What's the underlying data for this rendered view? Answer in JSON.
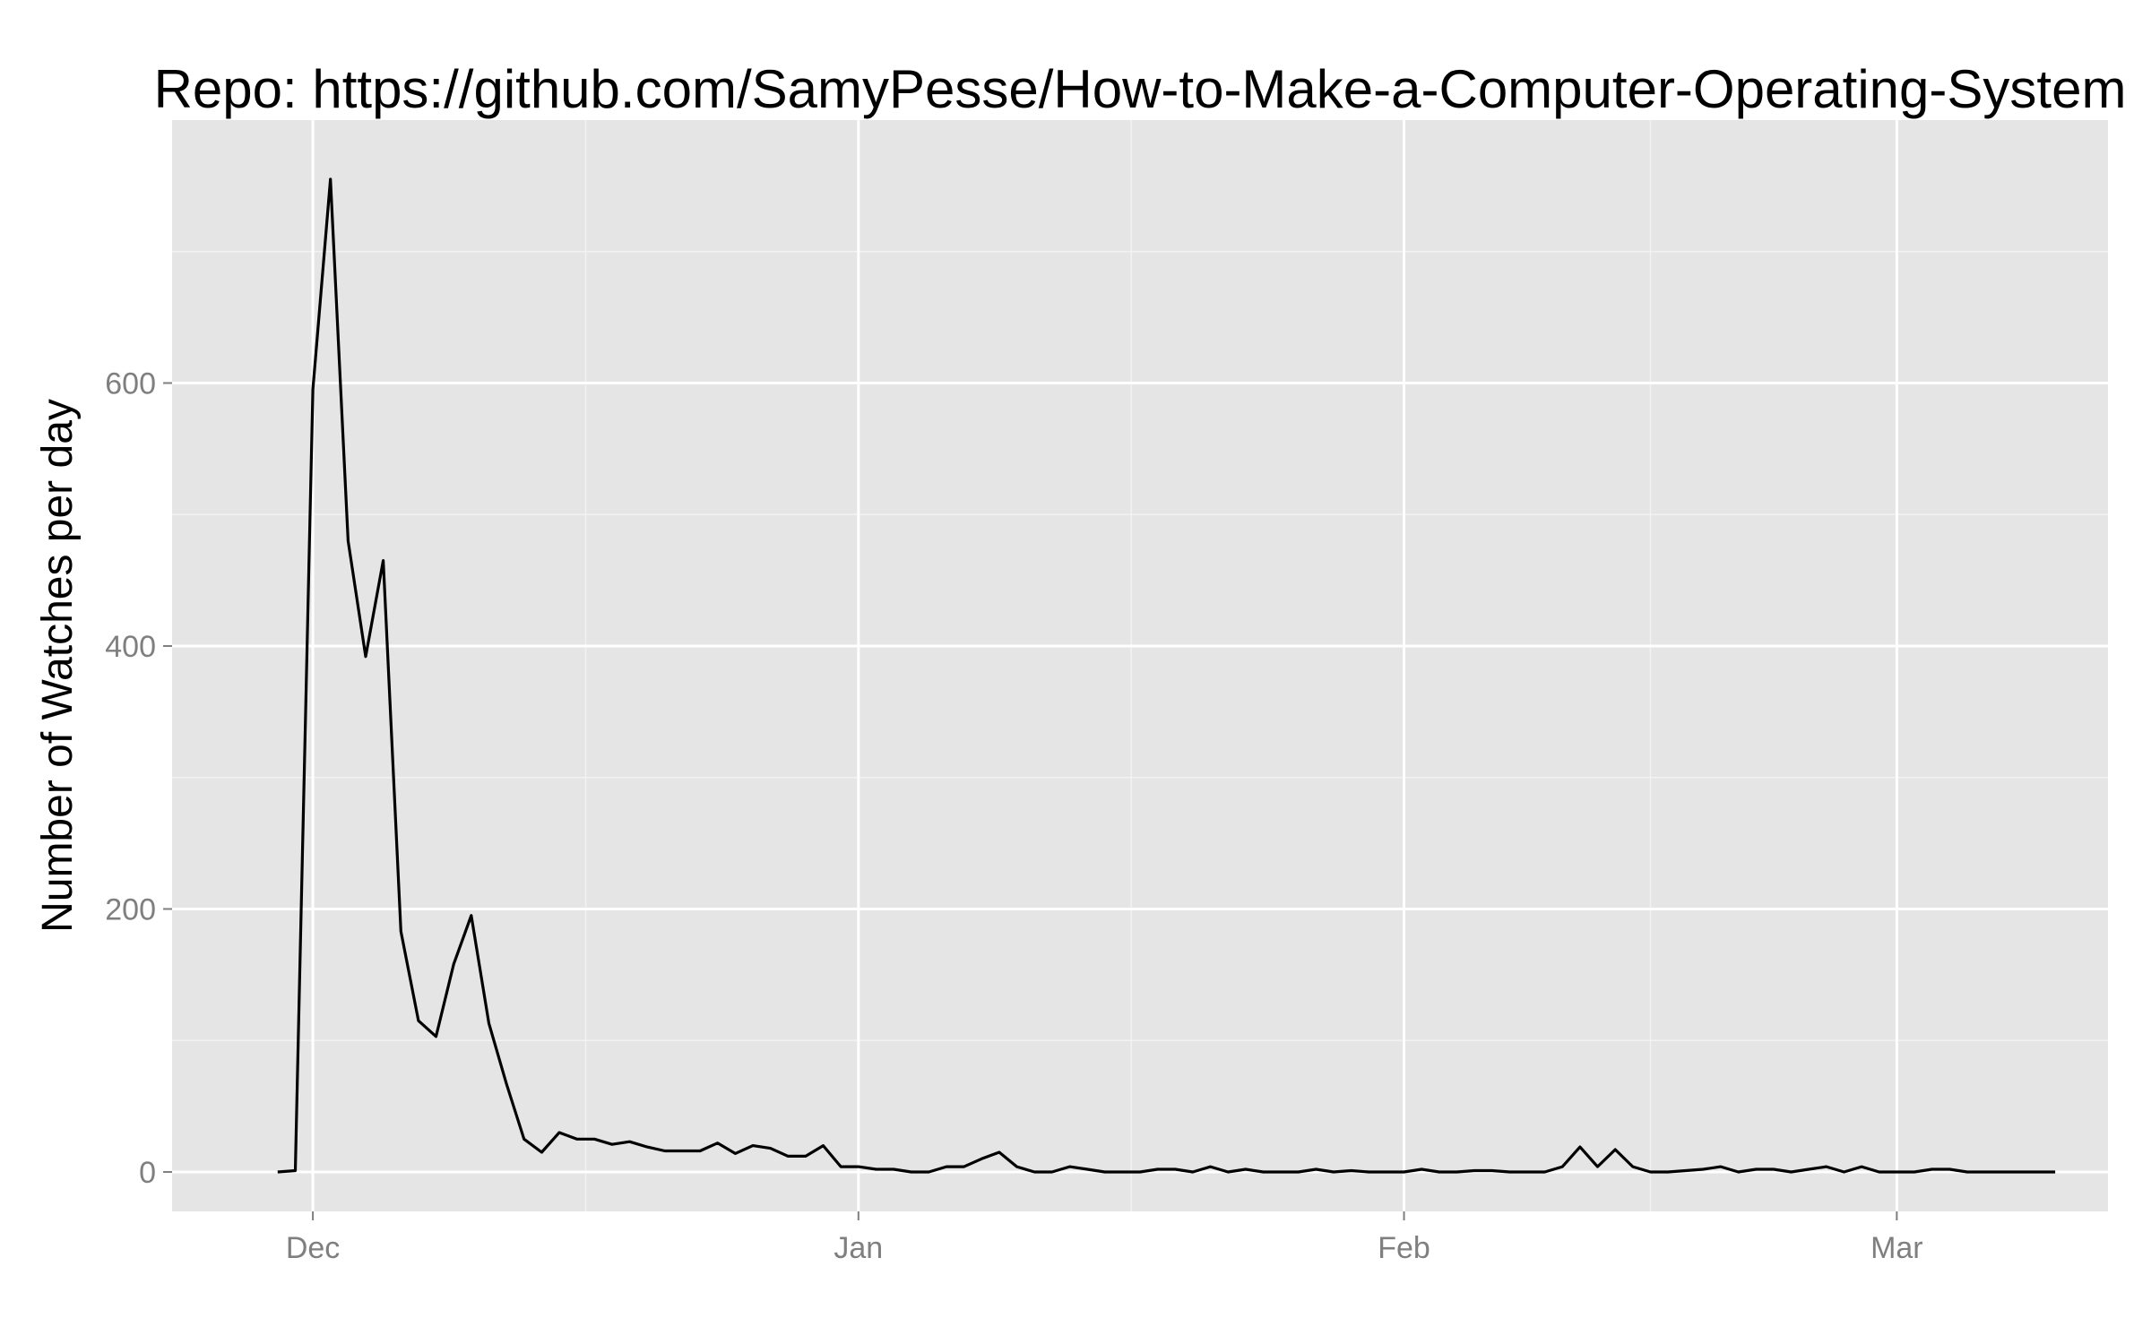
{
  "chart_data": {
    "type": "line",
    "title": "Repo: https://github.com/SamyPesse/How-to-Make-a-Computer-Operating-System",
    "xlabel": "",
    "ylabel": "Number of Watches per day",
    "x_axis": {
      "type": "date",
      "range": [
        "2013-11-23",
        "2014-03-13"
      ],
      "ticks": [
        "2013-12-01",
        "2014-01-01",
        "2014-02-01",
        "2014-03-01"
      ],
      "tick_labels": [
        "Dec",
        "Jan",
        "Feb",
        "Mar"
      ]
    },
    "y_axis": {
      "range": [
        -30,
        800
      ],
      "ticks": [
        0,
        200,
        400,
        600
      ],
      "tick_labels": [
        "0",
        "200",
        "400",
        "600"
      ]
    },
    "grid": true,
    "background": "#e5e5e5",
    "line_color": "#000000",
    "x": [
      "2013-11-29",
      "2013-11-30",
      "2013-12-01",
      "2013-12-02",
      "2013-12-03",
      "2013-12-04",
      "2013-12-05",
      "2013-12-06",
      "2013-12-07",
      "2013-12-08",
      "2013-12-09",
      "2013-12-10",
      "2013-12-11",
      "2013-12-12",
      "2013-12-13",
      "2013-12-14",
      "2013-12-15",
      "2013-12-16",
      "2013-12-17",
      "2013-12-18",
      "2013-12-19",
      "2013-12-20",
      "2013-12-21",
      "2013-12-22",
      "2013-12-23",
      "2013-12-24",
      "2013-12-25",
      "2013-12-26",
      "2013-12-27",
      "2013-12-28",
      "2013-12-29",
      "2013-12-30",
      "2013-12-31",
      "2014-01-01",
      "2014-01-02",
      "2014-01-03",
      "2014-01-04",
      "2014-01-05",
      "2014-01-06",
      "2014-01-07",
      "2014-01-08",
      "2014-01-09",
      "2014-01-10",
      "2014-01-11",
      "2014-01-12",
      "2014-01-13",
      "2014-01-14",
      "2014-01-15",
      "2014-01-16",
      "2014-01-17",
      "2014-01-18",
      "2014-01-19",
      "2014-01-20",
      "2014-01-21",
      "2014-01-22",
      "2014-01-23",
      "2014-01-24",
      "2014-01-25",
      "2014-01-26",
      "2014-01-27",
      "2014-01-28",
      "2014-01-29",
      "2014-01-30",
      "2014-01-31",
      "2014-02-01",
      "2014-02-02",
      "2014-02-03",
      "2014-02-04",
      "2014-02-05",
      "2014-02-06",
      "2014-02-07",
      "2014-02-08",
      "2014-02-09",
      "2014-02-10",
      "2014-02-11",
      "2014-02-12",
      "2014-02-13",
      "2014-02-14",
      "2014-02-15",
      "2014-02-16",
      "2014-02-17",
      "2014-02-18",
      "2014-02-19",
      "2014-02-20",
      "2014-02-21",
      "2014-02-22",
      "2014-02-23",
      "2014-02-24",
      "2014-02-25",
      "2014-02-26",
      "2014-02-27",
      "2014-02-28",
      "2014-03-01",
      "2014-03-02",
      "2014-03-03",
      "2014-03-04",
      "2014-03-05",
      "2014-03-06",
      "2014-03-07",
      "2014-03-08",
      "2014-03-09",
      "2014-03-10"
    ],
    "y": [
      0,
      1,
      595,
      755,
      480,
      392,
      465,
      183,
      115,
      103,
      158,
      195,
      113,
      67,
      25,
      15,
      30,
      25,
      25,
      21,
      23,
      19,
      16,
      16,
      16,
      22,
      14,
      20,
      18,
      12,
      12,
      20,
      4,
      4,
      2,
      2,
      0,
      0,
      4,
      4,
      10,
      15,
      4,
      0,
      0,
      4,
      2,
      0,
      0,
      0,
      2,
      2,
      0,
      4,
      0,
      2,
      0,
      0,
      0,
      2,
      0,
      1,
      0,
      0,
      0,
      2,
      0,
      0,
      1,
      1,
      0,
      0,
      0,
      4,
      19,
      4,
      17,
      4,
      0,
      0,
      1,
      2,
      4,
      0,
      2,
      2,
      0,
      2,
      4,
      0,
      4,
      0,
      0,
      0,
      2,
      2,
      0,
      0,
      0,
      0,
      0,
      0
    ]
  }
}
